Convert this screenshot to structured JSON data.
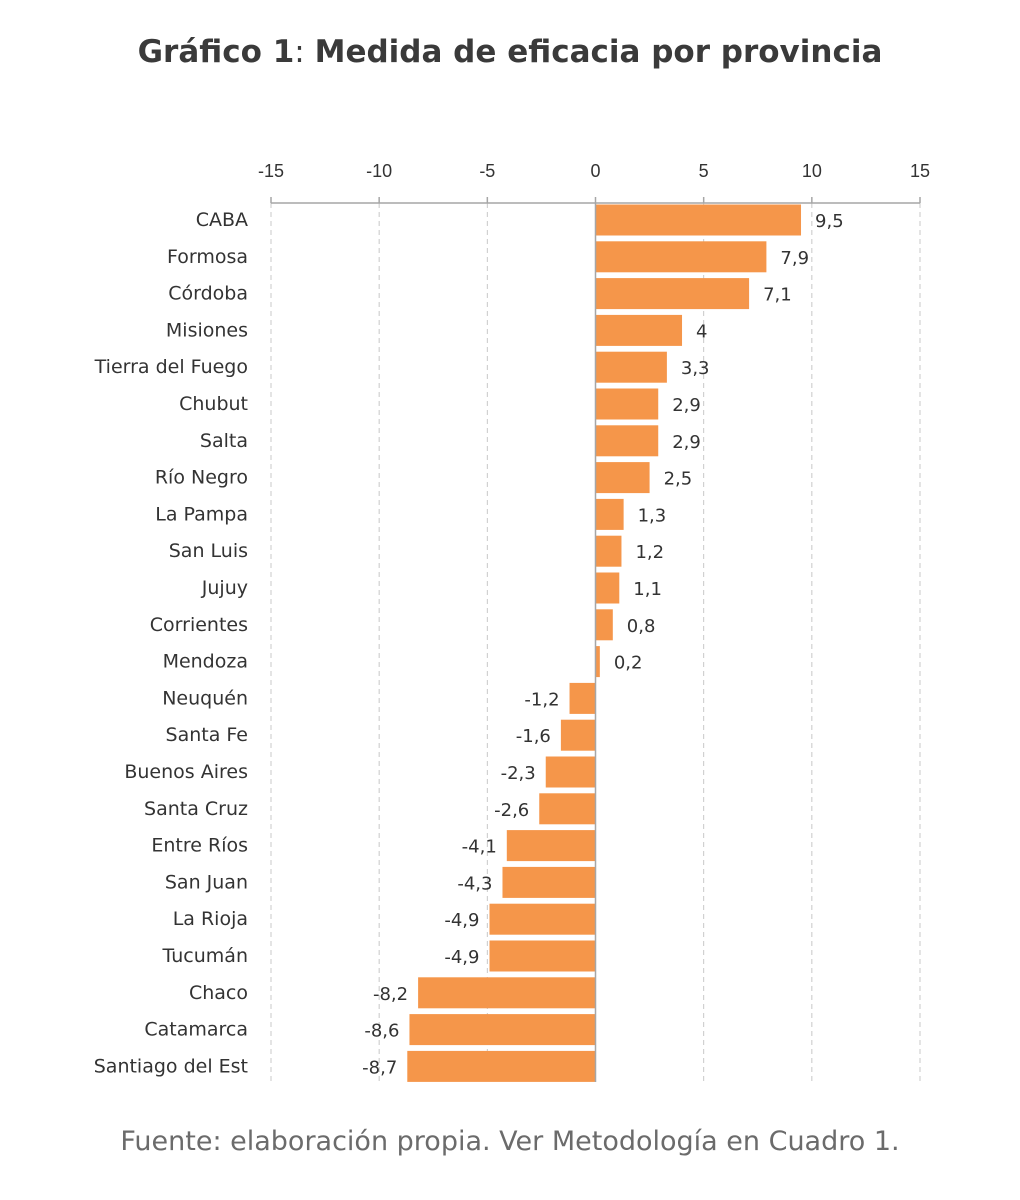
{
  "title": {
    "prefix": "Gráfico 1",
    "separator": ": ",
    "main": "Medida de eficacia por provincia"
  },
  "colors": {
    "bar": "#f5964a",
    "axis": "#a6a6a6",
    "grid": "#c8c8c8",
    "text": "#333333"
  },
  "chart_data": {
    "type": "bar",
    "orientation": "horizontal",
    "title": "Gráfico 1: Medida de eficacia por provincia",
    "xlabel": "",
    "ylabel": "",
    "xlim": [
      -15,
      15
    ],
    "x_ticks": [
      -15,
      -10,
      -5,
      0,
      5,
      10,
      15
    ],
    "x_tick_labels": [
      "-15",
      "-10",
      "-5",
      "0",
      "5",
      "10",
      "15"
    ],
    "axis_position": "top",
    "grid": "vertical dashed",
    "categories": [
      "CABA",
      "Formosa",
      "Córdoba",
      "Misiones",
      "Tierra del Fuego",
      "Chubut",
      "Salta",
      "Río Negro",
      "La Pampa",
      "San Luis",
      "Jujuy",
      "Corrientes",
      "Mendoza",
      "Neuquén",
      "Santa Fe",
      "Buenos Aires",
      "Santa Cruz",
      "Entre Ríos",
      "San Juan",
      "La Rioja",
      "Tucumán",
      "Chaco",
      "Catamarca",
      "Santiago del Est"
    ],
    "values": [
      9.5,
      7.9,
      7.1,
      4,
      3.3,
      2.9,
      2.9,
      2.5,
      1.3,
      1.2,
      1.1,
      0.8,
      0.2,
      -1.2,
      -1.6,
      -2.3,
      -2.6,
      -4.1,
      -4.3,
      -4.9,
      -4.9,
      -8.2,
      -8.6,
      -8.7
    ],
    "value_labels": [
      "9,5",
      "7,9",
      "7,1",
      "4",
      "3,3",
      "2,9",
      "2,9",
      "2,5",
      "1,3",
      "1,2",
      "1,1",
      "0,8",
      "0,2",
      "-1,2",
      "-1,6",
      "-2,3",
      "-2,6",
      "-4,1",
      "-4,3",
      "-4,9",
      "-4,9",
      "-8,2",
      "-8,6",
      "-8,7"
    ]
  },
  "footer": "Fuente: elaboración propia. Ver Metodología en Cuadro 1."
}
